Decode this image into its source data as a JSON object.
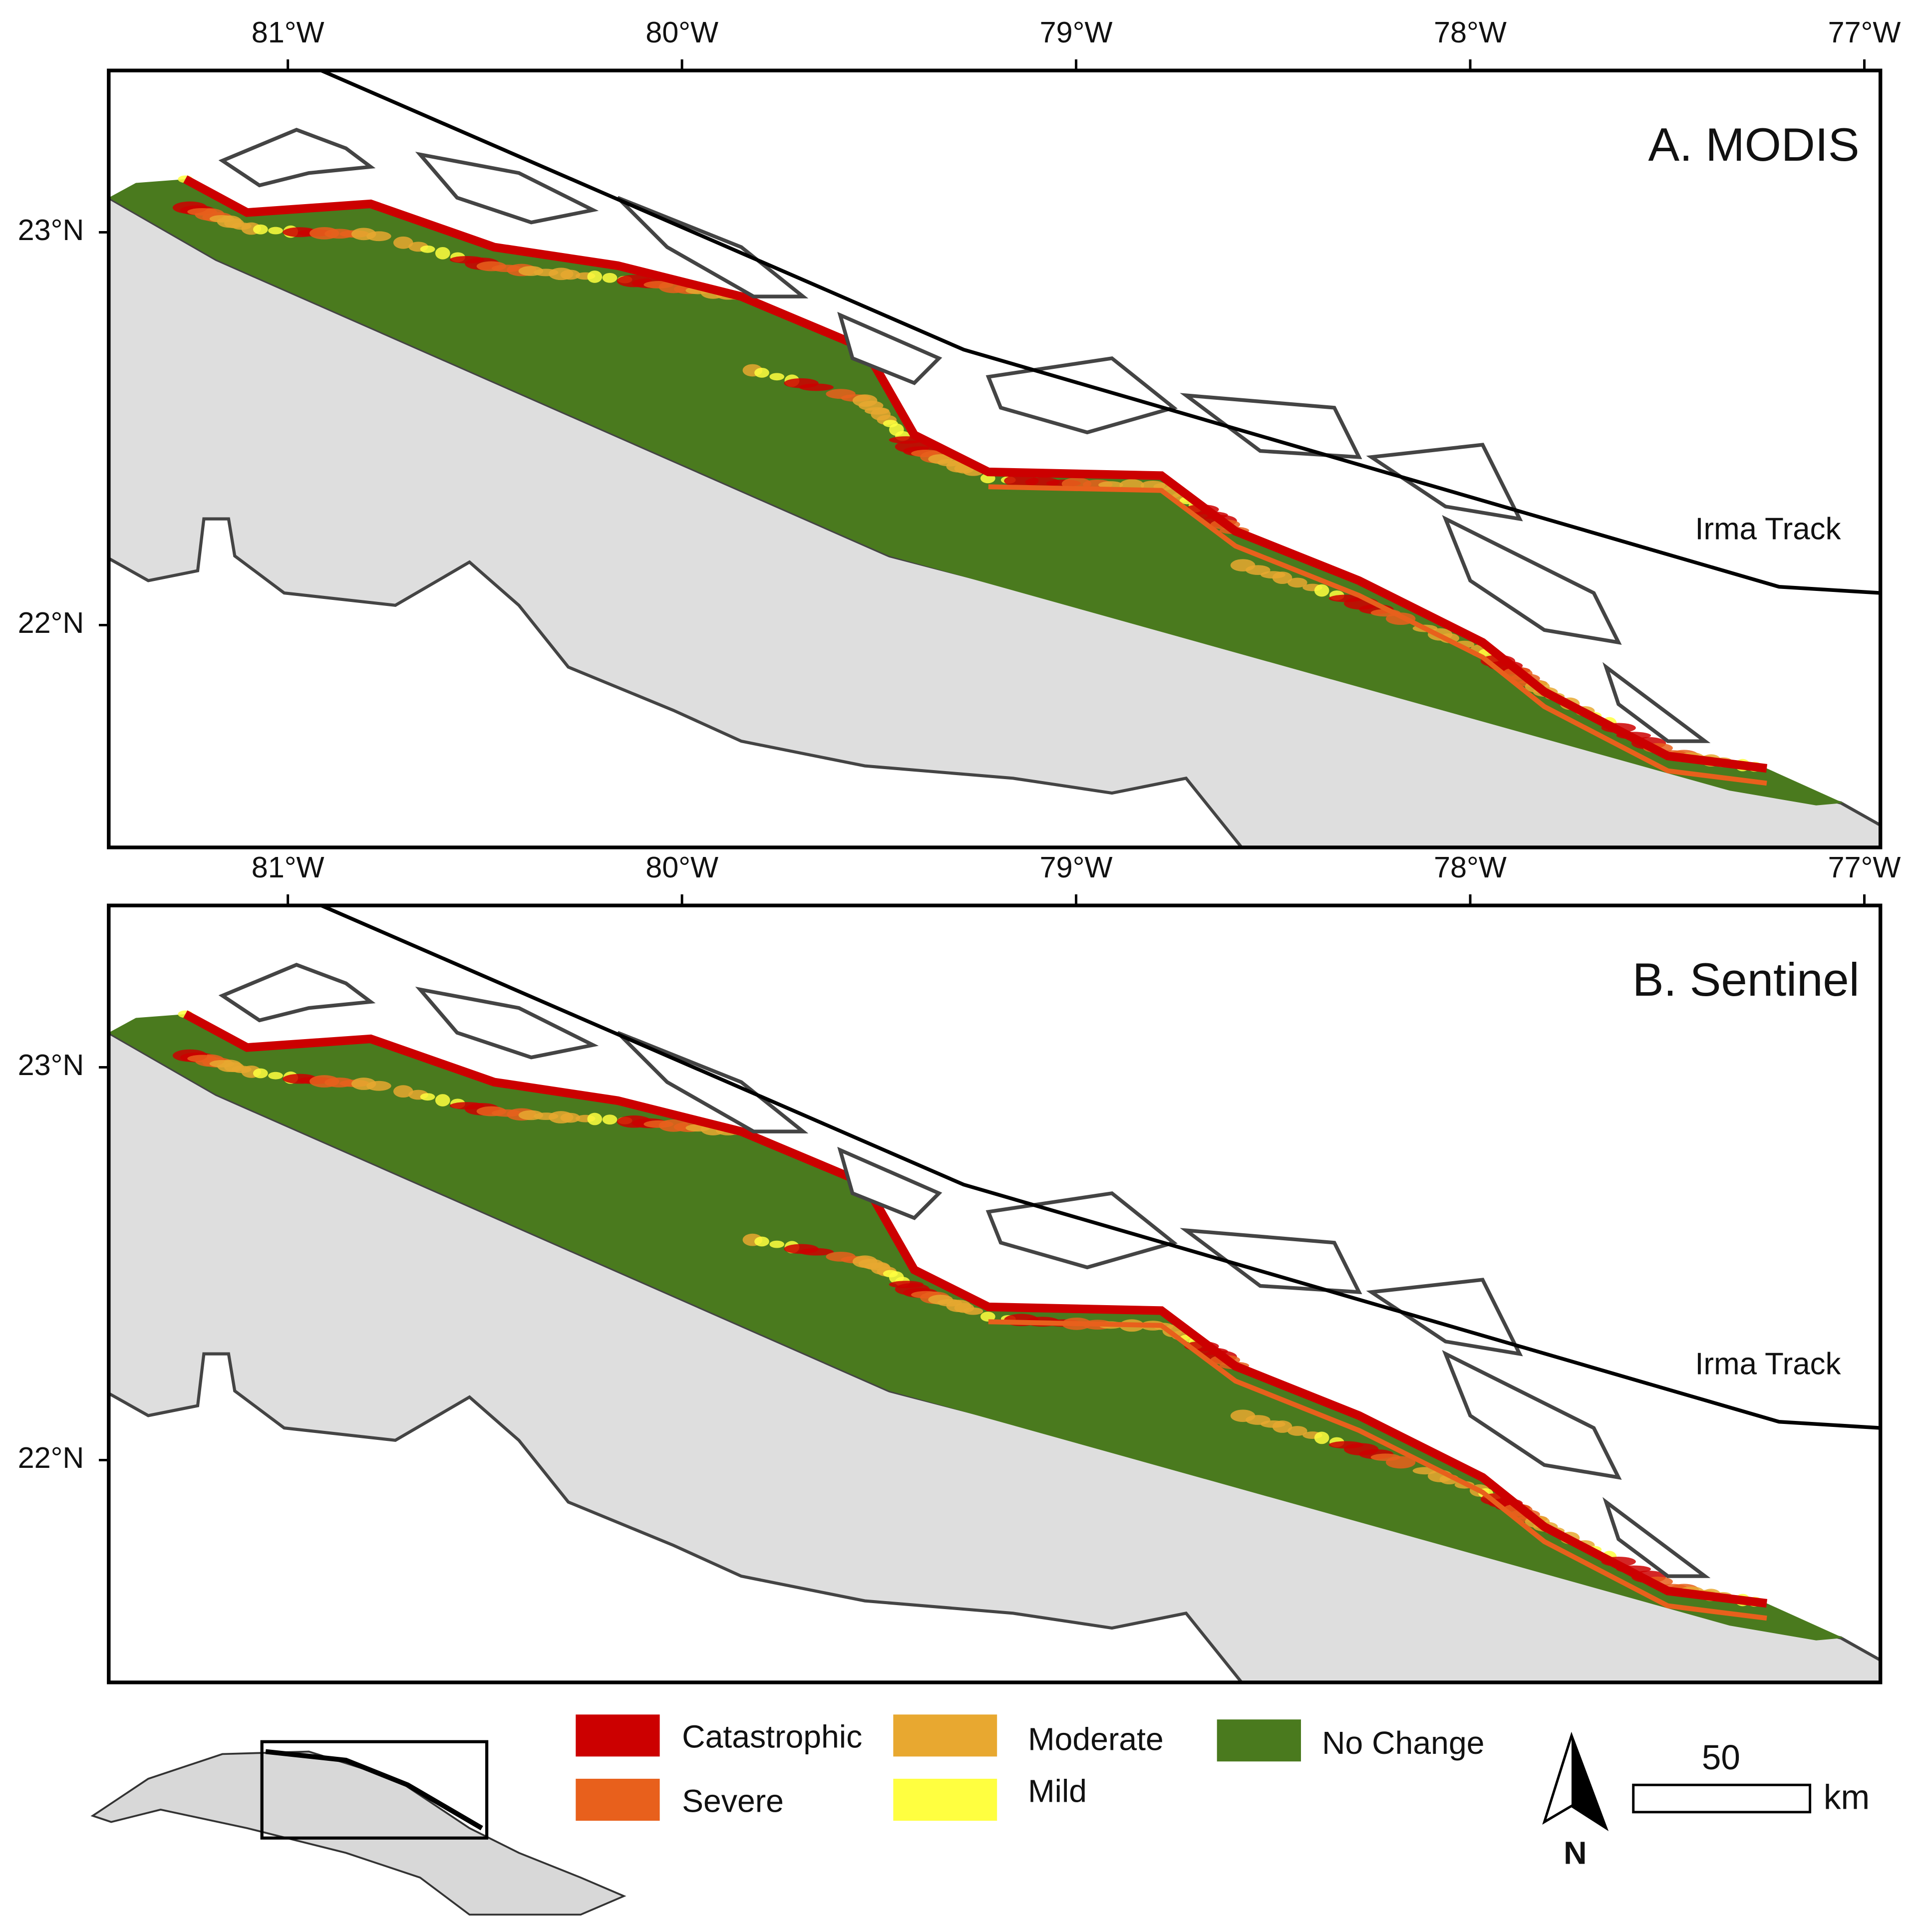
{
  "panels": [
    {
      "title": "A. MODIS",
      "longitude_labels": [
        "81°W",
        "80°W",
        "79°W",
        "78°W",
        "77°W"
      ],
      "latitude_labels": [
        "23°N",
        "22°N"
      ],
      "track_label": "Irma Track"
    },
    {
      "title": "B. Sentinel",
      "longitude_labels": [
        "81°W",
        "80°W",
        "79°W",
        "78°W",
        "77°W"
      ],
      "latitude_labels": [
        "23°N",
        "22°N"
      ],
      "track_label": "Irma Track"
    }
  ],
  "legend": [
    {
      "label": "Catastrophic",
      "color": "#cc0000"
    },
    {
      "label": "Severe",
      "color": "#e8601c"
    },
    {
      "label": "Moderate",
      "color": "#e8a830"
    },
    {
      "label": "Mild",
      "color": "#ffff40"
    },
    {
      "label": "No Change",
      "color": "#4a7a1e"
    }
  ],
  "scale_bar": {
    "label": "50",
    "unit": "km"
  },
  "north_arrow": "N"
}
